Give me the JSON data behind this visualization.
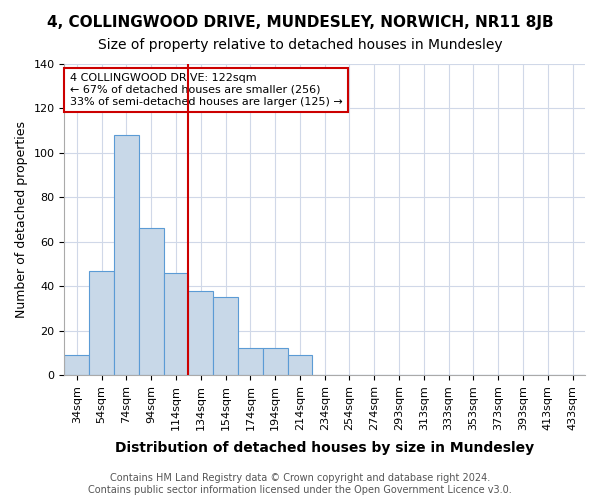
{
  "title": "4, COLLINGWOOD DRIVE, MUNDESLEY, NORWICH, NR11 8JB",
  "subtitle": "Size of property relative to detached houses in Mundesley",
  "xlabel": "Distribution of detached houses by size in Mundesley",
  "ylabel": "Number of detached properties",
  "bin_labels": [
    "34sqm",
    "54sqm",
    "74sqm",
    "94sqm",
    "114sqm",
    "134sqm",
    "154sqm",
    "174sqm",
    "194sqm",
    "214sqm",
    "234sqm",
    "254sqm",
    "274sqm",
    "293sqm",
    "313sqm",
    "333sqm",
    "353sqm",
    "373sqm",
    "393sqm",
    "413sqm",
    "433sqm"
  ],
  "bar_heights": [
    9,
    47,
    108,
    66,
    46,
    38,
    35,
    12,
    12,
    9,
    0,
    0,
    0,
    0,
    0,
    0,
    0,
    0,
    0,
    0,
    0
  ],
  "bar_color": "#c8d8e8",
  "bar_edge_color": "#5b9bd5",
  "vline_x": 4.5,
  "vline_color": "#cc0000",
  "annotation_line1": "4 COLLINGWOOD DRIVE: 122sqm",
  "annotation_line2": "← 67% of detached houses are smaller (256)",
  "annotation_line3": "33% of semi-detached houses are larger (125) →",
  "annotation_box_color": "#ffffff",
  "annotation_box_edge": "#cc0000",
  "ylim": [
    0,
    140
  ],
  "yticks": [
    0,
    20,
    40,
    60,
    80,
    100,
    120,
    140
  ],
  "footer": "Contains HM Land Registry data © Crown copyright and database right 2024.\nContains public sector information licensed under the Open Government Licence v3.0.",
  "title_fontsize": 11,
  "subtitle_fontsize": 10,
  "xlabel_fontsize": 10,
  "ylabel_fontsize": 9,
  "tick_fontsize": 8,
  "footer_fontsize": 7,
  "bg_color": "#ffffff",
  "grid_color": "#d0d8e8"
}
